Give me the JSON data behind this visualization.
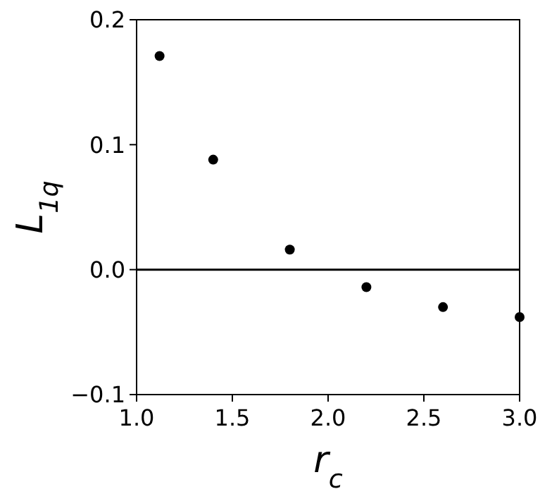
{
  "chart_data": {
    "type": "scatter",
    "xlabel": "r$_{c}$",
    "ylabel": "L$_{1q}$",
    "x": [
      1.12,
      1.4,
      1.8,
      2.2,
      2.6,
      3.0
    ],
    "series": [
      {
        "color": "#000000",
        "values": [
          0.171,
          0.088,
          0.016,
          -0.014,
          -0.03,
          -0.038
        ]
      }
    ],
    "xlim": [
      1.0,
      3.0
    ],
    "xticks": [
      {
        "value": 1.0,
        "label": "1.0"
      },
      {
        "value": 1.5,
        "label": "1.5"
      },
      {
        "value": 2.0,
        "label": "2.0"
      },
      {
        "value": 2.5,
        "label": "2.5"
      },
      {
        "value": 3.0,
        "label": "3.0"
      }
    ],
    "ylim": [
      -0.1,
      0.2
    ],
    "yticks": [
      {
        "value": -0.1,
        "label": "−0.1"
      },
      {
        "value": 0.0,
        "label": "0.0"
      },
      {
        "value": 0.1,
        "label": "0.1"
      },
      {
        "value": 0.2,
        "label": "0.2"
      }
    ],
    "ref_lines": [
      {
        "axis": "y",
        "value": 0,
        "color": "#000000"
      }
    ],
    "marker": "circle",
    "grid": false
  }
}
